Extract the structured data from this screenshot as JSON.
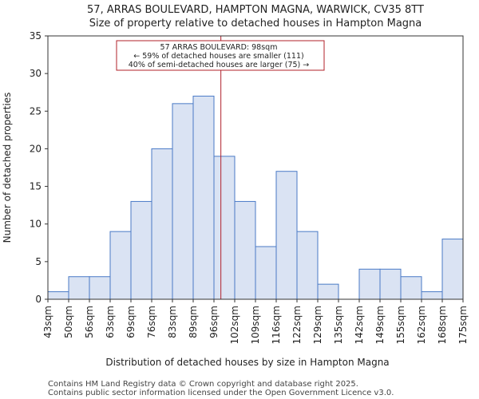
{
  "chart_data": {
    "type": "bar",
    "title_lines": [
      "57, ARRAS BOULEVARD, HAMPTON MAGNA, WARWICK, CV35 8TT",
      "Size of property relative to detached houses in Hampton Magna"
    ],
    "xlabel": "Distribution of detached houses by size in Hampton Magna",
    "ylabel": "Number of detached properties",
    "ylim": [
      0,
      35
    ],
    "yticks": [
      0,
      5,
      10,
      15,
      20,
      25,
      30,
      35
    ],
    "bin_edges": [
      43,
      50,
      56,
      63,
      69,
      76,
      83,
      89,
      96,
      102,
      109,
      116,
      122,
      129,
      135,
      142,
      149,
      155,
      162,
      168,
      175
    ],
    "tick_labels": [
      "43sqm",
      "50sqm",
      "56sqm",
      "63sqm",
      "69sqm",
      "76sqm",
      "83sqm",
      "89sqm",
      "96sqm",
      "102sqm",
      "109sqm",
      "116sqm",
      "122sqm",
      "129sqm",
      "135sqm",
      "142sqm",
      "149sqm",
      "155sqm",
      "162sqm",
      "168sqm",
      "175sqm"
    ],
    "values": [
      1,
      3,
      3,
      9,
      13,
      20,
      26,
      27,
      19,
      13,
      7,
      17,
      9,
      2,
      0,
      4,
      4,
      3,
      1,
      8
    ],
    "marker_value": 98,
    "annotation_lines": [
      "57 ARRAS BOULEVARD: 98sqm",
      "← 59% of detached houses are smaller (111)",
      "40% of semi-detached houses are larger (75) →"
    ],
    "footer_lines": [
      "Contains HM Land Registry data © Crown copyright and database right 2025.",
      "Contains public sector information licensed under the Open Government Licence v3.0."
    ],
    "colors": {
      "bar_fill": "#dae3f3",
      "bar_edge": "#4a7ac6",
      "marker": "#b0202a"
    }
  }
}
